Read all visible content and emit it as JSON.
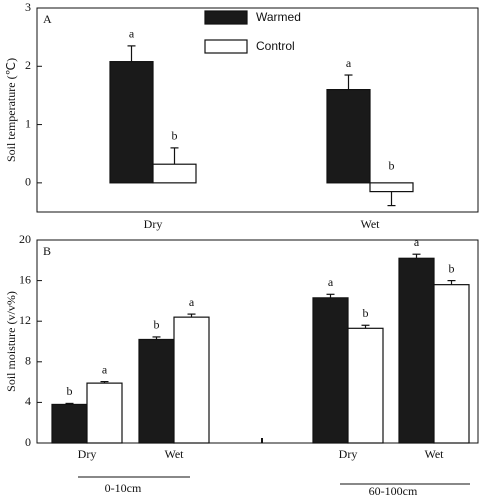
{
  "chart_data": [
    {
      "type": "bar",
      "panel": "A",
      "y_label": "Soil temperature (℃)",
      "categories": [
        "Dry",
        "Wet"
      ],
      "series": [
        {
          "name": "Warmed",
          "color": "#1a1a1a",
          "values": [
            2.08,
            1.6
          ],
          "errors": [
            0.27,
            0.25
          ],
          "labels": [
            "a",
            "a"
          ]
        },
        {
          "name": "Control",
          "color": "#ffffff",
          "values": [
            0.32,
            -0.15
          ],
          "errors": [
            0.28,
            0.24
          ],
          "labels": [
            "b",
            "b"
          ]
        }
      ],
      "ylim": [
        -0.5,
        3
      ],
      "yticks": [
        0,
        1,
        2,
        3
      ],
      "legend": "top-center"
    },
    {
      "type": "bar",
      "panel": "B",
      "y_label": "Soil moisture (v/v%)",
      "categories": [
        "Dry",
        "Wet",
        "Dry",
        "Wet"
      ],
      "groups": [
        "0-10cm",
        "60-100cm"
      ],
      "series": [
        {
          "name": "Warmed",
          "color": "#1a1a1a",
          "values": [
            3.8,
            10.2,
            14.3,
            18.2
          ],
          "errors": [
            0.1,
            0.25,
            0.35,
            0.4
          ],
          "labels": [
            "b",
            "b",
            "a",
            "a"
          ]
        },
        {
          "name": "Control",
          "color": "#ffffff",
          "values": [
            5.9,
            12.4,
            11.3,
            15.6
          ],
          "errors": [
            0.15,
            0.3,
            0.3,
            0.4
          ],
          "labels": [
            "a",
            "a",
            "b",
            "b"
          ]
        }
      ],
      "ylim": [
        0,
        20
      ],
      "yticks": [
        0,
        4,
        8,
        12,
        16,
        20
      ]
    }
  ]
}
